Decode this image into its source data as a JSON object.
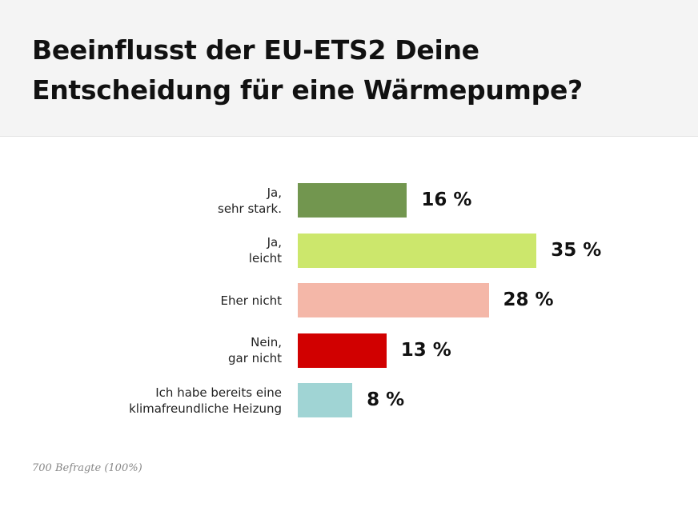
{
  "chart_data": {
    "type": "bar",
    "orientation": "horizontal",
    "title": "Beeinflusst der EU-ETS2 Deine\nEntscheidung für eine Wärmepumpe?",
    "categories": [
      "Ja,\nsehr stark.",
      "Ja,\nleicht",
      "Eher nicht",
      "Nein,\ngar nicht",
      "Ich habe bereits eine\nklimafreundliche Heizung"
    ],
    "values": [
      16,
      35,
      28,
      13,
      8
    ],
    "value_labels": [
      "16 %",
      "35 %",
      "28 %",
      "13 %",
      "8 %"
    ],
    "colors": [
      "#72964f",
      "#cce76c",
      "#f4b7a8",
      "#d10000",
      "#a0d4d4"
    ],
    "note": "700 Befragte (100%)"
  }
}
